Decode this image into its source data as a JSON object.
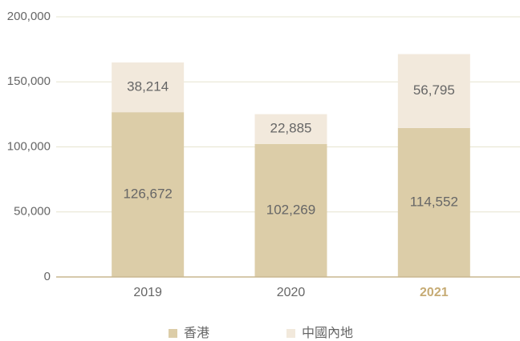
{
  "chart_data": {
    "type": "stacked_bar",
    "categories": [
      "2019",
      "2020",
      "2021"
    ],
    "highlight_category": "2021",
    "highlight_color": "#c6ab74",
    "series": [
      {
        "name": "香港",
        "color": "#dccda8",
        "values": [
          126672,
          102269,
          114552
        ],
        "value_labels": [
          "126,672",
          "102,269",
          "114,552"
        ]
      },
      {
        "name": "中國內地",
        "color": "#f2e9dc",
        "values": [
          38214,
          22885,
          56795
        ],
        "value_labels": [
          "38,214",
          "22,885",
          "56,795"
        ]
      }
    ],
    "ylim": [
      0,
      200000
    ],
    "yticks": [
      {
        "value": 0,
        "label": "0"
      },
      {
        "value": 50000,
        "label": "50,000"
      },
      {
        "value": 100000,
        "label": "100,000"
      },
      {
        "value": 150000,
        "label": "150,000"
      },
      {
        "value": 200000,
        "label": "200,000"
      }
    ],
    "grid": true,
    "legend": "bottom"
  }
}
